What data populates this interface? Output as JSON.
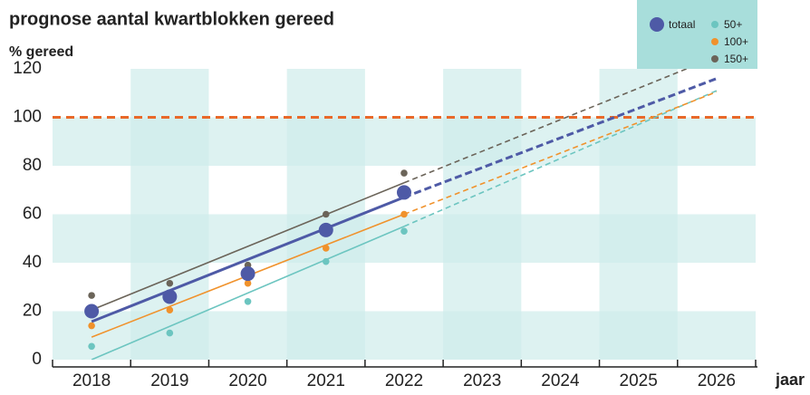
{
  "chart_data": {
    "type": "scatter",
    "title": "prognose aantal kwartblokken gereed",
    "y_label": "% gereed",
    "x_label": "jaar",
    "x": [
      2018,
      2019,
      2020,
      2021,
      2022
    ],
    "xlim": [
      2017.5,
      2026.5
    ],
    "xticks": [
      2018,
      2019,
      2020,
      2021,
      2022,
      2023,
      2024,
      2025,
      2026
    ],
    "ylim": [
      0,
      120
    ],
    "yticks": [
      0,
      20,
      40,
      60,
      80,
      100,
      120
    ],
    "reference_line": {
      "value": 100,
      "color": "#e8692a"
    },
    "band_color": "#cfeceb",
    "legend_color": "#a8dedb",
    "series": [
      {
        "name": "totaal",
        "color": "#4e5aa6",
        "values": [
          20,
          26,
          35.5,
          53.5,
          69
        ],
        "trend": {
          "x": [
            2018,
            2022,
            2026
          ],
          "values": [
            15.7,
            67,
            116
          ]
        }
      },
      {
        "name": "50+",
        "color": "#6cc5c0",
        "values": [
          5.5,
          11,
          24,
          40.5,
          53
        ],
        "trend": {
          "x": [
            2018,
            2022,
            2026
          ],
          "values": [
            0,
            55,
            111
          ]
        }
      },
      {
        "name": "100+",
        "color": "#f0922c",
        "values": [
          14,
          20.5,
          31.5,
          46,
          60
        ],
        "trend": {
          "x": [
            2018,
            2022,
            2026
          ],
          "values": [
            9.3,
            60,
            110.5
          ]
        }
      },
      {
        "name": "150+",
        "color": "#6b6459",
        "values": [
          26.5,
          31.5,
          39,
          60,
          77
        ],
        "trend": {
          "x": [
            2018,
            2022,
            2026
          ],
          "values": [
            20.5,
            73,
            125
          ]
        }
      }
    ]
  }
}
